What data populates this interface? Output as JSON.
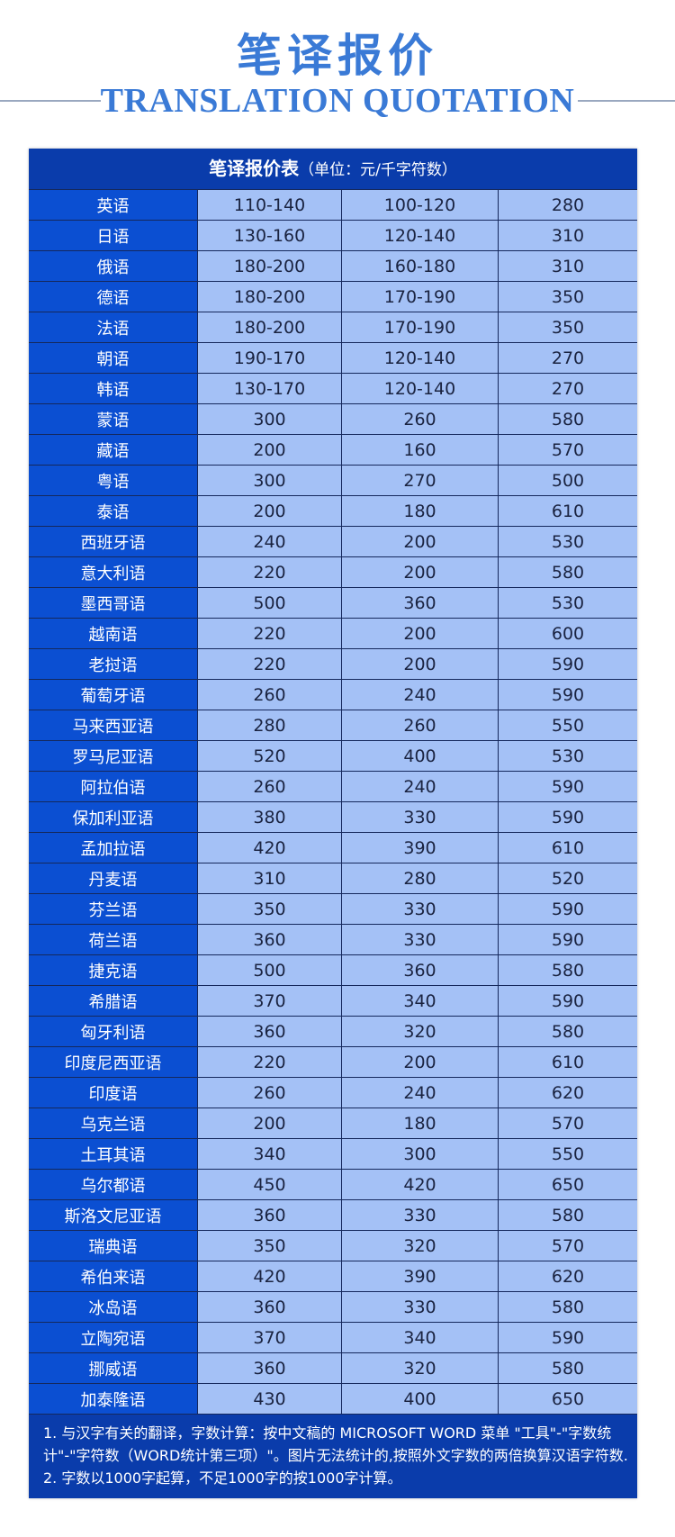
{
  "header": {
    "title_cn": "笔译报价",
    "title_en": "TRANSLATION QUOTATION"
  },
  "table": {
    "title": "笔译报价表",
    "unit": "（单位：元/千字符数）",
    "rows": [
      [
        "英语",
        "110-140",
        "100-120",
        "280"
      ],
      [
        "日语",
        "130-160",
        "120-140",
        "310"
      ],
      [
        "俄语",
        "180-200",
        "160-180",
        "310"
      ],
      [
        "德语",
        "180-200",
        "170-190",
        "350"
      ],
      [
        "法语",
        "180-200",
        "170-190",
        "350"
      ],
      [
        "朝语",
        "190-170",
        "120-140",
        "270"
      ],
      [
        "韩语",
        "130-170",
        "120-140",
        "270"
      ],
      [
        "蒙语",
        "300",
        "260",
        "580"
      ],
      [
        "藏语",
        "200",
        "160",
        "570"
      ],
      [
        "粤语",
        "300",
        "270",
        "500"
      ],
      [
        "泰语",
        "200",
        "180",
        "610"
      ],
      [
        "西班牙语",
        "240",
        "200",
        "530"
      ],
      [
        "意大利语",
        "220",
        "200",
        "580"
      ],
      [
        "墨西哥语",
        "500",
        "360",
        "530"
      ],
      [
        "越南语",
        "220",
        "200",
        "600"
      ],
      [
        "老挝语",
        "220",
        "200",
        "590"
      ],
      [
        "葡萄牙语",
        "260",
        "240",
        "590"
      ],
      [
        "马来西亚语",
        "280",
        "260",
        "550"
      ],
      [
        "罗马尼亚语",
        "520",
        "400",
        "530"
      ],
      [
        "阿拉伯语",
        "260",
        "240",
        "590"
      ],
      [
        "保加利亚语",
        "380",
        "330",
        "590"
      ],
      [
        "孟加拉语",
        "420",
        "390",
        "610"
      ],
      [
        "丹麦语",
        "310",
        "280",
        "520"
      ],
      [
        "芬兰语",
        "350",
        "330",
        "590"
      ],
      [
        "荷兰语",
        "360",
        "330",
        "590"
      ],
      [
        "捷克语",
        "500",
        "360",
        "580"
      ],
      [
        "希腊语",
        "370",
        "340",
        "590"
      ],
      [
        "匈牙利语",
        "360",
        "320",
        "580"
      ],
      [
        "印度尼西亚语",
        "220",
        "200",
        "610"
      ],
      [
        "印度语",
        "260",
        "240",
        "620"
      ],
      [
        "乌克兰语",
        "200",
        "180",
        "570"
      ],
      [
        "土耳其语",
        "340",
        "300",
        "550"
      ],
      [
        "乌尔都语",
        "450",
        "420",
        "650"
      ],
      [
        "斯洛文尼亚语",
        "360",
        "330",
        "580"
      ],
      [
        "瑞典语",
        "350",
        "320",
        "570"
      ],
      [
        "希伯来语",
        "420",
        "390",
        "620"
      ],
      [
        "冰岛语",
        "360",
        "330",
        "580"
      ],
      [
        "立陶宛语",
        "370",
        "340",
        "590"
      ],
      [
        "挪威语",
        "360",
        "320",
        "580"
      ],
      [
        "加泰隆语",
        "430",
        "400",
        "650"
      ]
    ],
    "notes": [
      "1. 与汉字有关的翻译，字数计算：按中文稿的 MICROSOFT WORD 菜单 \"工具\"-\"字数统计\"-\"字符数（WORD统计第三项）\"。图片无法统计的,按照外文字数的两倍换算汉语字符数.",
      "2. 字数以1000字起算，不足1000字的按1000字计算。"
    ]
  },
  "colors": {
    "title": "#3a7ad6",
    "header_bg": "#0a3cab",
    "lang_col": "#0b4fd2",
    "cell_bg": "#a4c1f6"
  }
}
